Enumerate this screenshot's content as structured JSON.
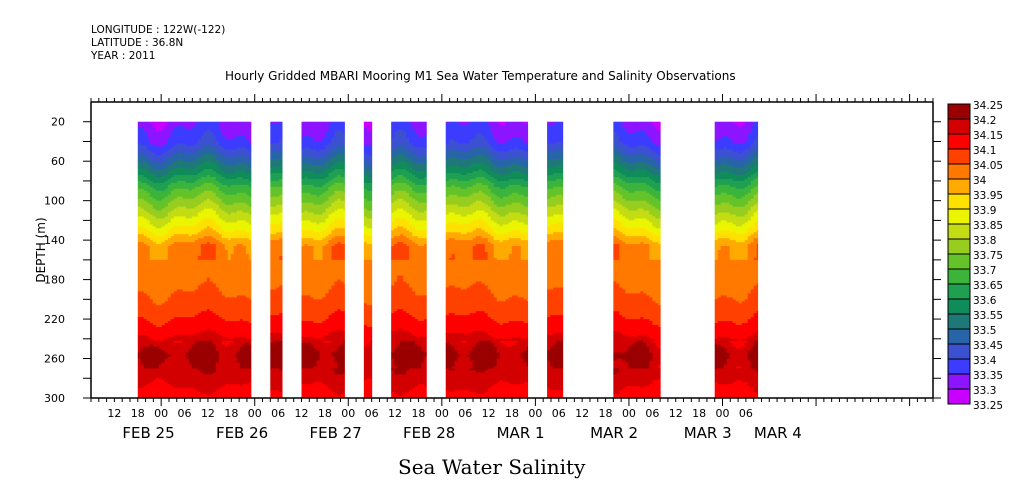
{
  "header": {
    "longitude": "LONGITUDE : 122W(-122)",
    "latitude": "LATITUDE : 36.8N",
    "year": "YEAR : 2011"
  },
  "chart_data": {
    "type": "heatmap",
    "subtype": "filled-contour depth-time section",
    "title": "Hourly Gridded MBARI Mooring M1 Sea Water Temperature and Salinity Observations",
    "variable_title": "Sea Water Salinity",
    "ylabel": "DEPTH (m)",
    "xlabel": "",
    "ylim": [
      300,
      0
    ],
    "y_axis_inverted": true,
    "yticks": [
      20,
      60,
      100,
      140,
      180,
      220,
      260,
      300
    ],
    "x_range_hours": [
      0,
      216
    ],
    "x_origin": "FEB 25 06:00",
    "x_hour_labels": [
      "12",
      "18",
      "00",
      "06",
      "12",
      "18",
      "00",
      "06",
      "12",
      "18",
      "00",
      "06",
      "12",
      "18",
      "00",
      "06",
      "12",
      "18",
      "00",
      "06",
      "12",
      "18",
      "00",
      "06",
      "12",
      "18",
      "00",
      "06"
    ],
    "x_day_labels": [
      {
        "label": "FEB 25",
        "hour": 6
      },
      {
        "label": "FEB 26",
        "hour": 30
      },
      {
        "label": "FEB 27",
        "hour": 54
      },
      {
        "label": "FEB 28",
        "hour": 78
      },
      {
        "label": "MAR  1",
        "hour": 102
      },
      {
        "label": "MAR  2",
        "hour": 126
      },
      {
        "label": "MAR  3",
        "hour": 150
      },
      {
        "label": "MAR  4",
        "hour": 168
      }
    ],
    "data_depth_range": [
      20,
      300
    ],
    "data_segments": [
      {
        "start": "FEB 25 18:00",
        "end": "FEB 26 23:00"
      },
      {
        "start": "FEB 27 04:00",
        "end": "FEB 27 07:00"
      },
      {
        "start": "FEB 27 12:00",
        "end": "FEB 27 23:00"
      },
      {
        "start": "FEB 28 04:00",
        "end": "FEB 28 06:00"
      },
      {
        "start": "FEB 28 11:00",
        "end": "FEB 28 20:00"
      },
      {
        "start": "MAR 1 01:00",
        "end": "MAR 1 22:00"
      },
      {
        "start": "MAR 2 03:00",
        "end": "MAR 2 07:00"
      },
      {
        "start": "MAR 2 20:00",
        "end": "MAR 3 08:00"
      },
      {
        "start": "MAR 3 22:00",
        "end": "MAR 4 09:00"
      }
    ],
    "typical_profile": [
      {
        "depth": 20,
        "salinity": 33.33
      },
      {
        "depth": 40,
        "salinity": 33.38
      },
      {
        "depth": 55,
        "salinity": 33.47
      },
      {
        "depth": 70,
        "salinity": 33.57
      },
      {
        "depth": 85,
        "salinity": 33.68
      },
      {
        "depth": 100,
        "salinity": 33.76
      },
      {
        "depth": 115,
        "salinity": 33.84
      },
      {
        "depth": 130,
        "salinity": 33.92
      },
      {
        "depth": 145,
        "salinity": 34.02
      },
      {
        "depth": 180,
        "salinity": 34.03
      },
      {
        "depth": 210,
        "salinity": 34.08
      },
      {
        "depth": 230,
        "salinity": 34.13
      },
      {
        "depth": 255,
        "salinity": 34.22
      },
      {
        "depth": 280,
        "salinity": 34.17
      },
      {
        "depth": 300,
        "salinity": 34.12
      }
    ],
    "colorbar": {
      "levels": [
        33.25,
        33.3,
        33.35,
        33.4,
        33.45,
        33.5,
        33.55,
        33.6,
        33.65,
        33.7,
        33.75,
        33.8,
        33.85,
        33.9,
        33.95,
        34,
        34.05,
        34.1,
        34.15,
        34.2,
        34.25
      ],
      "labels": [
        "34.25",
        "34.2",
        "34.15",
        "34.1",
        "34.05",
        "34",
        "33.95",
        "33.9",
        "33.85",
        "33.8",
        "33.75",
        "33.7",
        "33.65",
        "33.6",
        "33.55",
        "33.5",
        "33.45",
        "33.4",
        "33.35",
        "33.3",
        "33.25"
      ],
      "colors": [
        "#c800ff",
        "#8c14ff",
        "#3c3cff",
        "#3c50d2",
        "#2864a8",
        "#1e7878",
        "#0f8c5a",
        "#1ea050",
        "#3cb43c",
        "#64c328",
        "#96cd1e",
        "#c3dc14",
        "#ebf500",
        "#ffe100",
        "#ffaa00",
        "#ff7800",
        "#ff4100",
        "#ff0000",
        "#d20000",
        "#9b0000"
      ]
    }
  }
}
